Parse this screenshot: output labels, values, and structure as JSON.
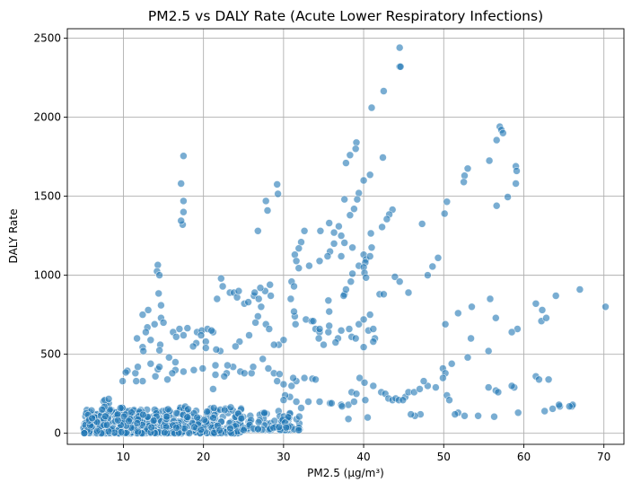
{
  "chart_data": {
    "type": "scatter",
    "title": "PM2.5 vs DALY Rate (Acute Lower Respiratory Infections)",
    "xlabel": "PM2.5 (µg/m³)",
    "ylabel": "DALY Rate",
    "xlim": [
      3,
      72.5
    ],
    "ylim": [
      -70,
      2560
    ],
    "xticks": [
      10,
      20,
      30,
      40,
      50,
      60,
      70
    ],
    "yticks": [
      0,
      500,
      1000,
      1500,
      2000,
      2500
    ],
    "grid": true,
    "marker_color": "#1f77b4",
    "marker_alpha": 0.6,
    "clusters": [
      {
        "x": [
          5,
          15
        ],
        "y": [
          0,
          150
        ],
        "n": 400
      },
      {
        "x": [
          15,
          25
        ],
        "y": [
          0,
          170
        ],
        "n": 260
      },
      {
        "x": [
          25,
          32
        ],
        "y": [
          20,
          150
        ],
        "n": 90
      },
      {
        "x": [
          7,
          10
        ],
        "y": [
          150,
          240
        ],
        "n": 12
      }
    ],
    "points": [
      [
        44.5,
        2440
      ],
      [
        44.5,
        2320
      ],
      [
        44.6,
        2320
      ],
      [
        42.5,
        2165
      ],
      [
        41,
        2060
      ],
      [
        57,
        1940
      ],
      [
        57.2,
        1920
      ],
      [
        57.4,
        1900
      ],
      [
        39.1,
        1840
      ],
      [
        39,
        1800
      ],
      [
        38.3,
        1760
      ],
      [
        37.8,
        1710
      ],
      [
        42.4,
        1745
      ],
      [
        40.8,
        1635
      ],
      [
        40,
        1600
      ],
      [
        59,
        1690
      ],
      [
        59.1,
        1660
      ],
      [
        53,
        1675
      ],
      [
        52.6,
        1630
      ],
      [
        52.5,
        1590
      ],
      [
        55.7,
        1725
      ],
      [
        56.6,
        1855
      ],
      [
        59,
        1580
      ],
      [
        17.5,
        1755
      ],
      [
        17.2,
        1580
      ],
      [
        17.5,
        1470
      ],
      [
        17.5,
        1400
      ],
      [
        17.4,
        1320
      ],
      [
        17.2,
        1345
      ],
      [
        29.2,
        1575
      ],
      [
        29.3,
        1515
      ],
      [
        27.8,
        1470
      ],
      [
        28,
        1410
      ],
      [
        26.8,
        1280
      ],
      [
        39.4,
        1520
      ],
      [
        39.2,
        1480
      ],
      [
        38.8,
        1420
      ],
      [
        38.3,
        1380
      ],
      [
        37.6,
        1480
      ],
      [
        43.6,
        1415
      ],
      [
        43.2,
        1385
      ],
      [
        42.9,
        1355
      ],
      [
        42.3,
        1305
      ],
      [
        50.4,
        1465
      ],
      [
        50.1,
        1390
      ],
      [
        47.3,
        1325
      ],
      [
        58,
        1495
      ],
      [
        56.6,
        1440
      ],
      [
        32.6,
        1280
      ],
      [
        34.6,
        1280
      ],
      [
        35.7,
        1330
      ],
      [
        36.3,
        1270
      ],
      [
        36.9,
        1310
      ],
      [
        36.3,
        1200
      ],
      [
        35.8,
        1150
      ],
      [
        32.2,
        1210
      ],
      [
        31.9,
        1170
      ],
      [
        31.4,
        1130
      ],
      [
        31.6,
        1090
      ],
      [
        31.9,
        1045
      ],
      [
        33.2,
        1060
      ],
      [
        34.5,
        1090
      ],
      [
        35.5,
        1120
      ],
      [
        37.2,
        1120
      ],
      [
        37.6,
        1205
      ],
      [
        37.2,
        1250
      ],
      [
        38.6,
        1175
      ],
      [
        39.4,
        1060
      ],
      [
        40,
        1130
      ],
      [
        40.3,
        1100
      ],
      [
        40.8,
        1120
      ],
      [
        41,
        1175
      ],
      [
        40.9,
        1265
      ],
      [
        40.2,
        1080
      ],
      [
        40,
        1050
      ],
      [
        40.1,
        1015
      ],
      [
        40.3,
        985
      ],
      [
        42,
        880
      ],
      [
        42.5,
        880
      ],
      [
        43.9,
        990
      ],
      [
        44.5,
        960
      ],
      [
        45.6,
        890
      ],
      [
        48,
        1000
      ],
      [
        48.6,
        1055
      ],
      [
        49.3,
        1110
      ],
      [
        14.3,
        1065
      ],
      [
        14.2,
        1025
      ],
      [
        14.5,
        1000
      ],
      [
        14.4,
        885
      ],
      [
        14.7,
        810
      ],
      [
        13.1,
        780
      ],
      [
        12.4,
        750
      ],
      [
        14.7,
        730
      ],
      [
        15,
        700
      ],
      [
        13.9,
        690
      ],
      [
        13,
        670
      ],
      [
        12.8,
        640
      ],
      [
        11.7,
        600
      ],
      [
        13.4,
        590
      ],
      [
        12.4,
        545
      ],
      [
        12.5,
        520
      ],
      [
        14.6,
        560
      ],
      [
        14.5,
        525
      ],
      [
        16.2,
        640
      ],
      [
        17,
        660
      ],
      [
        16.6,
        610
      ],
      [
        17.5,
        620
      ],
      [
        18,
        665
      ],
      [
        19.2,
        640
      ],
      [
        19.8,
        650
      ],
      [
        20.5,
        660
      ],
      [
        20.3,
        580
      ],
      [
        19.7,
        620
      ],
      [
        21.7,
        850
      ],
      [
        22.2,
        980
      ],
      [
        22.4,
        930
      ],
      [
        23.3,
        890
      ],
      [
        23.8,
        890
      ],
      [
        24.2,
        860
      ],
      [
        24.4,
        900
      ],
      [
        25.1,
        820
      ],
      [
        25.6,
        830
      ],
      [
        26.3,
        870
      ],
      [
        26.4,
        890
      ],
      [
        26.9,
        850
      ],
      [
        27.7,
        900
      ],
      [
        27.1,
        920
      ],
      [
        28.3,
        940
      ],
      [
        28.4,
        870
      ],
      [
        27.2,
        800
      ],
      [
        26.8,
        740
      ],
      [
        26.5,
        700
      ],
      [
        27.8,
        690
      ],
      [
        28.2,
        660
      ],
      [
        29.4,
        560
      ],
      [
        28.8,
        560
      ],
      [
        30,
        590
      ],
      [
        31.5,
        690
      ],
      [
        31.4,
        740
      ],
      [
        31.3,
        770
      ],
      [
        32.8,
        720
      ],
      [
        33.5,
        710
      ],
      [
        33.7,
        710
      ],
      [
        34,
        660
      ],
      [
        34.5,
        640
      ],
      [
        34.4,
        600
      ],
      [
        35.6,
        640
      ],
      [
        35.7,
        680
      ],
      [
        35.7,
        770
      ],
      [
        35.6,
        840
      ],
      [
        37.6,
        880
      ],
      [
        38.6,
        1010
      ],
      [
        38.4,
        960
      ],
      [
        37.8,
        910
      ],
      [
        37.5,
        870
      ],
      [
        38.2,
        660
      ],
      [
        38.5,
        610
      ],
      [
        39.4,
        690
      ],
      [
        40,
        720
      ],
      [
        40.8,
        750
      ],
      [
        40.6,
        650
      ],
      [
        41.2,
        660
      ],
      [
        41.4,
        600
      ],
      [
        41.2,
        580
      ],
      [
        40,
        545
      ],
      [
        39,
        600
      ],
      [
        37.2,
        650
      ],
      [
        36.8,
        600
      ],
      [
        36.5,
        575
      ],
      [
        35,
        560
      ],
      [
        34.5,
        660
      ],
      [
        30.9,
        850
      ],
      [
        31,
        960
      ],
      [
        31.3,
        930
      ],
      [
        25.7,
        620
      ],
      [
        24.5,
        580
      ],
      [
        24,
        550
      ],
      [
        23.7,
        420
      ],
      [
        22.1,
        520
      ],
      [
        21.6,
        530
      ],
      [
        20.3,
        540
      ],
      [
        19.1,
        570
      ],
      [
        18.7,
        550
      ],
      [
        21.2,
        640
      ],
      [
        21,
        650
      ],
      [
        18.8,
        400
      ],
      [
        19.9,
        410
      ],
      [
        17.5,
        390
      ],
      [
        16.5,
        400
      ],
      [
        15.7,
        480
      ],
      [
        16.5,
        450
      ],
      [
        15.5,
        340
      ],
      [
        14.3,
        405
      ],
      [
        14,
        360
      ],
      [
        12.4,
        330
      ],
      [
        11.6,
        330
      ],
      [
        11.5,
        380
      ],
      [
        11.8,
        420
      ],
      [
        10.5,
        395
      ],
      [
        10.3,
        385
      ],
      [
        9.9,
        330
      ],
      [
        13.4,
        440
      ],
      [
        14.5,
        420
      ],
      [
        16.1,
        380
      ],
      [
        22.9,
        380
      ],
      [
        21.5,
        370
      ],
      [
        22.6,
        360
      ],
      [
        21.2,
        280
      ],
      [
        21.5,
        430
      ],
      [
        23,
        430
      ],
      [
        24.6,
        390
      ],
      [
        25.1,
        380
      ],
      [
        26,
        380
      ],
      [
        27.4,
        470
      ],
      [
        26.2,
        420
      ],
      [
        28.1,
        410
      ],
      [
        28.8,
        380
      ],
      [
        29.5,
        375
      ],
      [
        29.2,
        330
      ],
      [
        30.8,
        230
      ],
      [
        31,
        300
      ],
      [
        31.6,
        330
      ],
      [
        32.6,
        350
      ],
      [
        33.6,
        345
      ],
      [
        34,
        340
      ],
      [
        31.2,
        350
      ],
      [
        30,
        310
      ],
      [
        30.2,
        240
      ],
      [
        30,
        210
      ],
      [
        31.6,
        200
      ],
      [
        32.2,
        160
      ],
      [
        33.1,
        200
      ],
      [
        34.5,
        200
      ],
      [
        35.8,
        190
      ],
      [
        37.2,
        180
      ],
      [
        38.1,
        180
      ],
      [
        38.5,
        260
      ],
      [
        39.1,
        250
      ],
      [
        39.5,
        350
      ],
      [
        40.1,
        320
      ],
      [
        41.2,
        300
      ],
      [
        42.2,
        260
      ],
      [
        42.7,
        250
      ],
      [
        43.1,
        220
      ],
      [
        43.6,
        210
      ],
      [
        44,
        220
      ],
      [
        44.4,
        210
      ],
      [
        45.2,
        230
      ],
      [
        45.6,
        260
      ],
      [
        46.3,
        260
      ],
      [
        47,
        280
      ],
      [
        48,
        300
      ],
      [
        47.5,
        330
      ],
      [
        49,
        290
      ],
      [
        50.4,
        240
      ],
      [
        50.7,
        210
      ],
      [
        49.9,
        410
      ],
      [
        50.2,
        380
      ],
      [
        49.9,
        350
      ],
      [
        51,
        440
      ],
      [
        50.2,
        690
      ],
      [
        51.8,
        760
      ],
      [
        53,
        480
      ],
      [
        53.5,
        800
      ],
      [
        55.8,
        850
      ],
      [
        56.5,
        730
      ],
      [
        53.4,
        600
      ],
      [
        55.6,
        520
      ],
      [
        55.6,
        290
      ],
      [
        56.5,
        270
      ],
      [
        56.8,
        260
      ],
      [
        58.8,
        290
      ],
      [
        58.5,
        300
      ],
      [
        59.2,
        660
      ],
      [
        58.5,
        640
      ],
      [
        61.5,
        820
      ],
      [
        62.3,
        780
      ],
      [
        62.2,
        710
      ],
      [
        62.8,
        730
      ],
      [
        64,
        870
      ],
      [
        67,
        910
      ],
      [
        70.2,
        800
      ],
      [
        61.5,
        360
      ],
      [
        61.9,
        340
      ],
      [
        63.1,
        340
      ],
      [
        62.6,
        140
      ],
      [
        63.6,
        155
      ],
      [
        64.5,
        170
      ],
      [
        66,
        170
      ],
      [
        66.1,
        180
      ],
      [
        65.7,
        170
      ],
      [
        64.4,
        180
      ],
      [
        59.3,
        130
      ],
      [
        56.3,
        105
      ],
      [
        54.3,
        110
      ],
      [
        52.6,
        110
      ],
      [
        51.8,
        130
      ],
      [
        51.4,
        120
      ],
      [
        47.1,
        120
      ],
      [
        46.4,
        110
      ],
      [
        45.9,
        120
      ],
      [
        44.9,
        210
      ],
      [
        37.3,
        170
      ],
      [
        36,
        190
      ],
      [
        38.1,
        90
      ],
      [
        40.5,
        100
      ],
      [
        40.2,
        210
      ],
      [
        38.8,
        200
      ]
    ]
  }
}
